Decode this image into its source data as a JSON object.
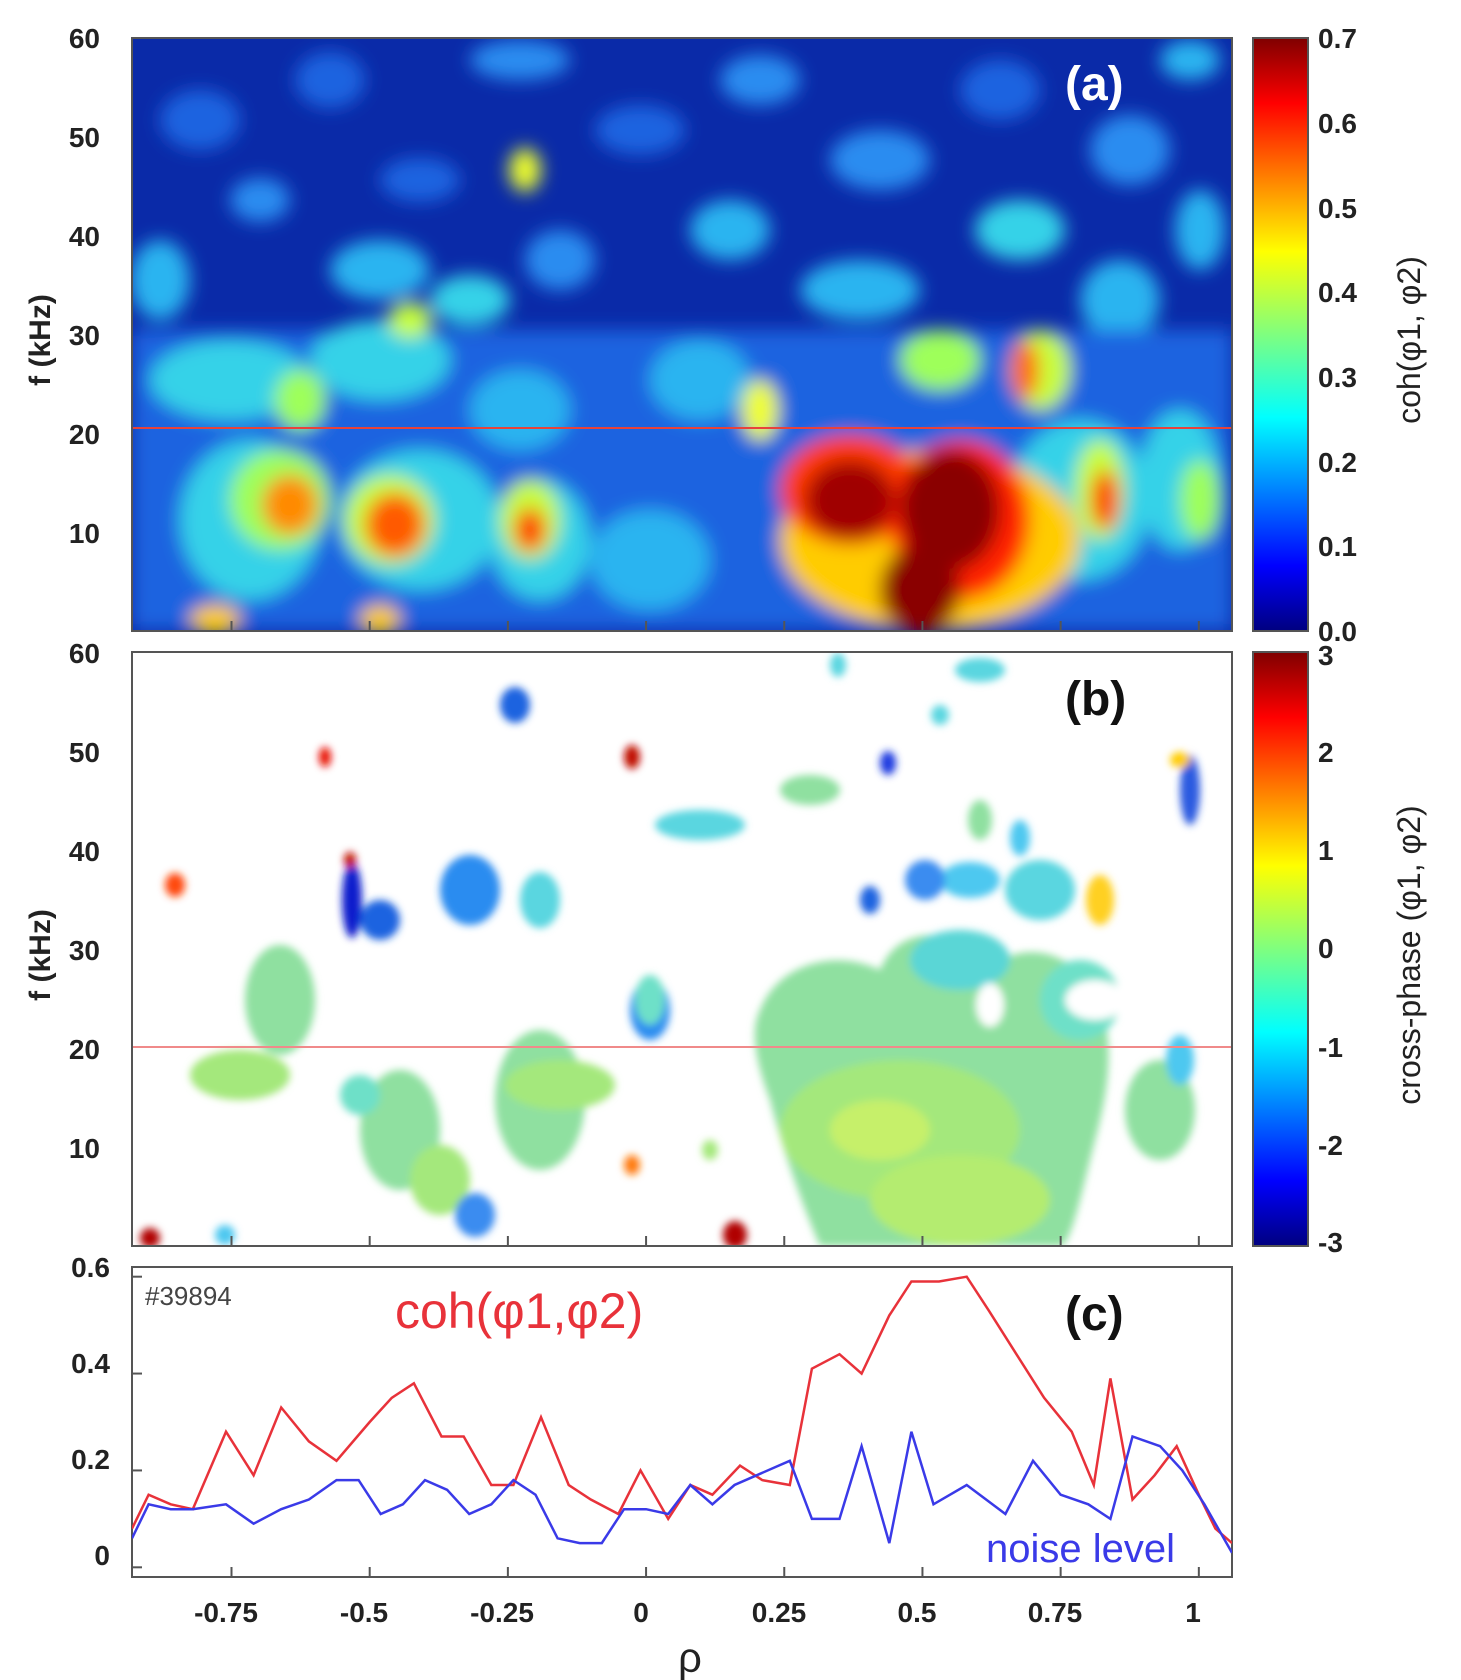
{
  "chart_data": [
    {
      "panel": "(a)",
      "type": "heatmap",
      "ylabel": "f (kHz)",
      "yticks": [
        "10",
        "20",
        "30",
        "40",
        "50",
        "60"
      ],
      "ylim": [
        0,
        60
      ],
      "xlim": [
        -0.93,
        1.06
      ],
      "reference_line_f_kHz": 20.5,
      "colorbar": {
        "label": "coh(φ1, φ2)",
        "ticks": [
          "0.0",
          "0.1",
          "0.2",
          "0.3",
          "0.4",
          "0.5",
          "0.6",
          "0.7"
        ],
        "range": [
          0,
          0.7
        ],
        "colormap": "jet"
      }
    },
    {
      "panel": "(b)",
      "type": "heatmap",
      "ylabel": "f (kHz)",
      "yticks": [
        "10",
        "20",
        "30",
        "40",
        "50",
        "60"
      ],
      "ylim": [
        0,
        60
      ],
      "xlim": [
        -0.93,
        1.06
      ],
      "reference_line_f_kHz": 20.5,
      "note": "masked: only regions above noise level shown",
      "colorbar": {
        "label": "cross-phase (φ1, φ2)",
        "ticks": [
          "3",
          "2",
          "1",
          "0",
          "-1",
          "-2",
          "-3"
        ],
        "range": [
          -3,
          3
        ],
        "colormap": "jet"
      }
    },
    {
      "panel": "(c)",
      "type": "line",
      "shot": "#39894",
      "xlabel": "ρ",
      "xticks": [
        "-0.75",
        "-0.5",
        "-0.25",
        "0",
        "0.25",
        "0.5",
        "0.75",
        "1"
      ],
      "xlim": [
        -0.93,
        1.06
      ],
      "yticks": [
        "0",
        "0.2",
        "0.4",
        "0.6"
      ],
      "ylim": [
        -0.02,
        0.62
      ],
      "series": [
        {
          "name": "coh(φ1,φ2)",
          "color": "#e8323a",
          "x": [
            -0.93,
            -0.9,
            -0.86,
            -0.82,
            -0.76,
            -0.71,
            -0.66,
            -0.61,
            -0.56,
            -0.5,
            -0.46,
            -0.42,
            -0.37,
            -0.33,
            -0.28,
            -0.24,
            -0.19,
            -0.14,
            -0.1,
            -0.05,
            -0.01,
            0.04,
            0.08,
            0.12,
            0.17,
            0.21,
            0.26,
            0.3,
            0.35,
            0.39,
            0.44,
            0.48,
            0.53,
            0.58,
            0.62,
            0.67,
            0.72,
            0.77,
            0.81,
            0.84,
            0.88,
            0.92,
            0.96,
            1.0,
            1.03,
            1.06
          ],
          "values": [
            0.08,
            0.15,
            0.13,
            0.12,
            0.28,
            0.19,
            0.33,
            0.26,
            0.22,
            0.3,
            0.35,
            0.38,
            0.27,
            0.27,
            0.17,
            0.17,
            0.31,
            0.17,
            0.14,
            0.11,
            0.2,
            0.1,
            0.17,
            0.15,
            0.21,
            0.18,
            0.17,
            0.41,
            0.44,
            0.4,
            0.52,
            0.59,
            0.59,
            0.6,
            0.53,
            0.44,
            0.35,
            0.28,
            0.17,
            0.39,
            0.14,
            0.19,
            0.25,
            0.15,
            0.08,
            0.05
          ]
        },
        {
          "name": "noise level",
          "color": "#3a3ae8",
          "x": [
            -0.93,
            -0.9,
            -0.86,
            -0.82,
            -0.76,
            -0.71,
            -0.66,
            -0.61,
            -0.56,
            -0.52,
            -0.48,
            -0.44,
            -0.4,
            -0.36,
            -0.32,
            -0.28,
            -0.24,
            -0.2,
            -0.16,
            -0.12,
            -0.08,
            -0.04,
            0.0,
            0.04,
            0.08,
            0.12,
            0.16,
            0.2,
            0.24,
            0.26,
            0.3,
            0.35,
            0.39,
            0.44,
            0.48,
            0.52,
            0.58,
            0.65,
            0.7,
            0.75,
            0.8,
            0.84,
            0.88,
            0.93,
            0.97,
            1.01,
            1.06
          ],
          "values": [
            0.06,
            0.13,
            0.12,
            0.12,
            0.13,
            0.09,
            0.12,
            0.14,
            0.18,
            0.18,
            0.11,
            0.13,
            0.18,
            0.16,
            0.11,
            0.13,
            0.18,
            0.15,
            0.06,
            0.05,
            0.05,
            0.12,
            0.12,
            0.11,
            0.17,
            0.13,
            0.17,
            0.19,
            0.21,
            0.22,
            0.1,
            0.1,
            0.25,
            0.05,
            0.28,
            0.13,
            0.17,
            0.11,
            0.22,
            0.15,
            0.13,
            0.1,
            0.27,
            0.25,
            0.2,
            0.13,
            0.03
          ]
        }
      ]
    }
  ]
}
